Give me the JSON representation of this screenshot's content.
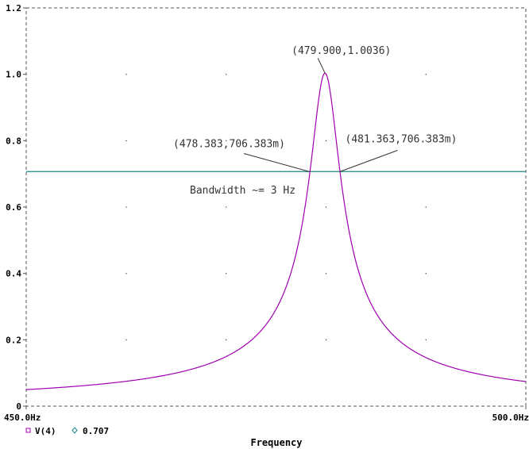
{
  "chart_data": {
    "type": "line",
    "title": "",
    "xlabel": "Frequency",
    "ylabel": "",
    "xlim": [
      450,
      500
    ],
    "ylim": [
      0,
      1.2
    ],
    "x_tick_labels": [
      "450.0Hz",
      "500.0Hz"
    ],
    "y_tick_labels": [
      "0",
      "0.2",
      "0.4",
      "0.6",
      "0.8",
      "1.0",
      "1.2"
    ],
    "grid": true,
    "series": [
      {
        "name": "V(4)",
        "color": "#a000b0",
        "marker": "square",
        "resonance": {
          "f0": 479.9,
          "peak": 1.0036,
          "half_bandwidth": 1.49
        },
        "x": [
          450,
          455,
          460,
          465,
          470,
          472,
          474,
          475,
          476,
          477,
          478,
          478.383,
          478.7,
          479,
          479.3,
          479.6,
          479.9,
          480.2,
          480.5,
          480.8,
          481.1,
          481.363,
          482,
          483,
          484,
          485,
          487,
          490,
          495,
          500
        ],
        "y": [
          0.05,
          0.06,
          0.075,
          0.1,
          0.15,
          0.185,
          0.245,
          0.29,
          0.36,
          0.46,
          0.62,
          0.706383,
          0.78,
          0.86,
          0.93,
          0.98,
          1.0036,
          0.98,
          0.93,
          0.86,
          0.78,
          0.706383,
          0.58,
          0.42,
          0.33,
          0.27,
          0.2,
          0.14,
          0.1,
          0.08
        ]
      },
      {
        "name": "0.707",
        "color": "#1a8a8a",
        "marker": "diamond",
        "constant": 0.707
      }
    ],
    "annotations": [
      {
        "text": "(479.900,1.0036)",
        "x": 479.9,
        "y": 1.0036
      },
      {
        "text": "(478.383,706.383m)",
        "x": 478.383,
        "y": 0.706383
      },
      {
        "text": "(481.363,706.383m)",
        "x": 481.363,
        "y": 0.706383
      },
      {
        "text": "Bandwidth ~= 3 Hz"
      }
    ]
  }
}
